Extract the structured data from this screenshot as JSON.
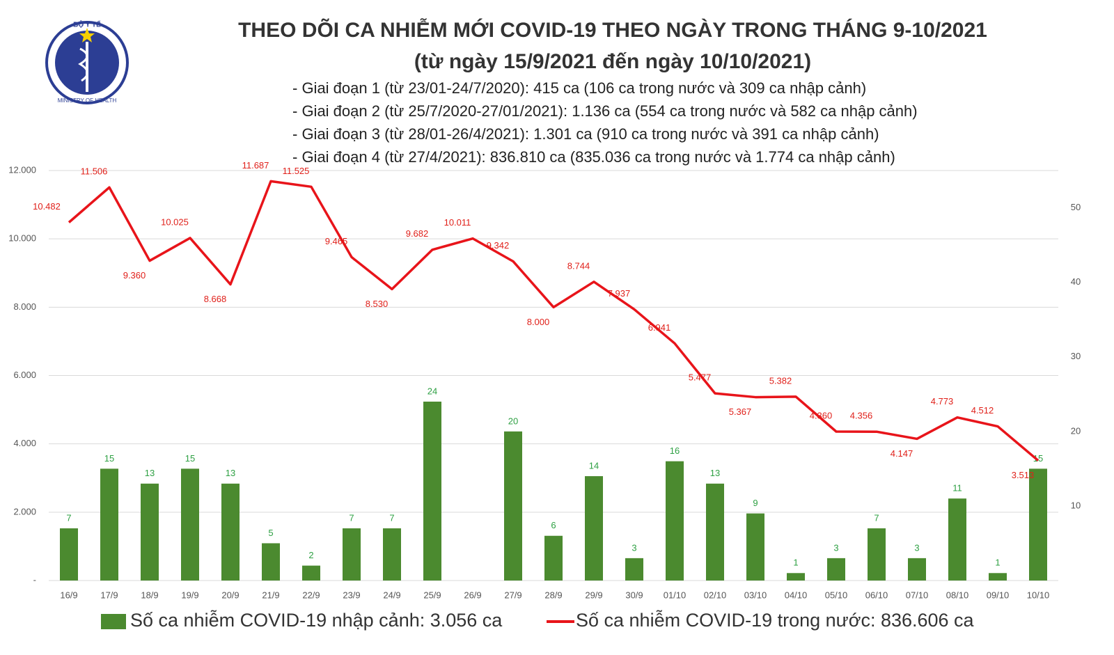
{
  "logo": {
    "top": "BỘ Y TẾ",
    "bottom": "MINISTRY OF HEALTH"
  },
  "chart_data": {
    "type": "bar-line",
    "title": "THEO DÕI CA NHIỄM MỚI COVID-19 THEO NGÀY TRONG THÁNG 9-10/2021",
    "subtitle": "(từ ngày 15/9/2021 đến ngày 10/10/2021)",
    "notes": [
      "- Giai đoạn 1 (từ 23/01-24/7/2020): 415 ca (106 ca trong nước và 309 ca nhập cảnh)",
      "- Giai đoạn 2 (từ 25/7/2020-27/01/2021): 1.136 ca (554 ca trong nước và 582 ca nhập cảnh)",
      "- Giai đoạn 3 (từ 28/01-26/4/2021): 1.301 ca (910 ca trong nước và 391 ca nhập cảnh)",
      "- Giai đoạn 4 (từ 27/4/2021): 836.810 ca (835.036 ca trong nước và 1.774 ca nhập cảnh)"
    ],
    "categories": [
      "16/9",
      "17/9",
      "18/9",
      "19/9",
      "20/9",
      "21/9",
      "22/9",
      "23/9",
      "24/9",
      "25/9",
      "26/9",
      "27/9",
      "28/9",
      "29/9",
      "30/9",
      "01/10",
      "02/10",
      "03/10",
      "04/10",
      "05/10",
      "06/10",
      "07/10",
      "08/10",
      "09/10",
      "10/10"
    ],
    "series": [
      {
        "name": "Số ca nhiễm COVID-19 nhập cảnh: 3.056 ca",
        "type": "bar",
        "axis": "y2",
        "color": "#4b8a2f",
        "label_color": "#2ea043",
        "values": [
          7,
          15,
          13,
          15,
          13,
          5,
          2,
          7,
          7,
          24,
          null,
          20,
          6,
          14,
          3,
          16,
          13,
          9,
          1,
          3,
          7,
          3,
          11,
          1,
          15
        ]
      },
      {
        "name": "Số ca nhiễm COVID-19 trong nước: 836.606 ca",
        "type": "line",
        "color": "#e8141a",
        "label_color": "#e0201a",
        "values": [
          10482,
          11506,
          9360,
          10025,
          8668,
          11687,
          11525,
          9465,
          8530,
          9682,
          10011,
          9342,
          8000,
          8744,
          7937,
          6941,
          5477,
          5367,
          5382,
          4360,
          4356,
          4147,
          4773,
          4512,
          3513
        ],
        "value_labels": [
          "10.482",
          "11.506",
          "9.360",
          "10.025",
          "8.668",
          "11.687",
          "11.525",
          "9.465",
          "8.530",
          "9.682",
          "10.011",
          "9.342",
          "8.000",
          "8.744",
          "7.937",
          "6.941",
          "5.477",
          "5.367",
          "5.382",
          "4.360",
          "4.356",
          "4.147",
          "4.773",
          "4.512",
          "3.513"
        ]
      }
    ],
    "ylim": [
      0,
      12000
    ],
    "yticks": [
      {
        "value": 0,
        "label": "-"
      },
      {
        "value": 2000,
        "label": "2.000"
      },
      {
        "value": 4000,
        "label": "4.000"
      },
      {
        "value": 6000,
        "label": "6.000"
      },
      {
        "value": 8000,
        "label": "8.000"
      },
      {
        "value": 10000,
        "label": "10.000"
      },
      {
        "value": 12000,
        "label": "12.000"
      }
    ],
    "y2lim": [
      0,
      55
    ],
    "y2ticks": [
      10,
      20,
      30,
      40,
      50
    ],
    "grid": true
  }
}
